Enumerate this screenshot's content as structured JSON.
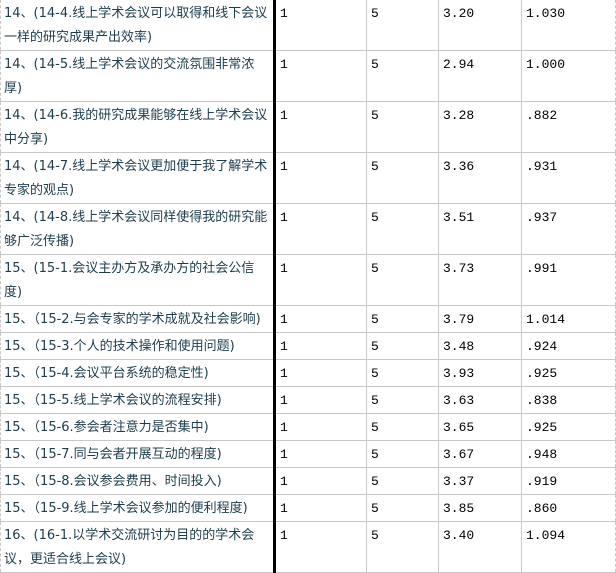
{
  "table": {
    "rows": [
      {
        "label": "14、(14-4.线上学术会议可以取得和线下会议一样的研究成果产出效率)",
        "min": "1",
        "max": "5",
        "mean": "3.20",
        "sd": "1.030",
        "tall": true
      },
      {
        "label": "14、(14-5.线上学术会议的交流氛围非常浓厚)",
        "min": "1",
        "max": "5",
        "mean": "2.94",
        "sd": "1.000",
        "tall": false
      },
      {
        "label": "14、(14-6.我的研究成果能够在线上学术会议中分享)",
        "min": "1",
        "max": "5",
        "mean": "3.28",
        "sd": ".882",
        "tall": true
      },
      {
        "label": "14、(14-7.线上学术会议更加便于我了解学术专家的观点)",
        "min": "1",
        "max": "5",
        "mean": "3.36",
        "sd": ".931",
        "tall": true
      },
      {
        "label": "14、(14-8.线上学术会议同样使得我的研究能够广泛传播)",
        "min": "1",
        "max": "5",
        "mean": "3.51",
        "sd": ".937",
        "tall": true
      },
      {
        "label": "15、(15-1.会议主办方及承办方的社会公信度)",
        "min": "1",
        "max": "5",
        "mean": "3.73",
        "sd": ".991",
        "tall": false
      },
      {
        "label": "15、（15-2.与会专家的学术成就及社会影响)",
        "min": "1",
        "max": "5",
        "mean": "3.79",
        "sd": "1.014",
        "tall": false
      },
      {
        "label": "15、（15-3.个人的技术操作和使用问题)",
        "min": "1",
        "max": "5",
        "mean": "3.48",
        "sd": ".924",
        "tall": false
      },
      {
        "label": "15、（15-4.会议平台系统的稳定性)",
        "min": "1",
        "max": "5",
        "mean": "3.93",
        "sd": ".925",
        "tall": false
      },
      {
        "label": "15、（15-5.线上学术会议的流程安排)",
        "min": "1",
        "max": "5",
        "mean": "3.63",
        "sd": ".838",
        "tall": false
      },
      {
        "label": "15、（15-6.参会者注意力是否集中)",
        "min": "1",
        "max": "5",
        "mean": "3.65",
        "sd": ".925",
        "tall": false
      },
      {
        "label": "15、（15-7.同与会者开展互动的程度)",
        "min": "1",
        "max": "5",
        "mean": "3.67",
        "sd": ".948",
        "tall": false
      },
      {
        "label": "15、（15-8.会议参会费用、时间投入)",
        "min": "1",
        "max": "5",
        "mean": "3.37",
        "sd": ".919",
        "tall": false
      },
      {
        "label": "15、（15-9.线上学术会议参加的便利程度)",
        "min": "1",
        "max": "5",
        "mean": "3.85",
        "sd": ".860",
        "tall": false
      },
      {
        "label": "16、(16-1.以学术交流研讨为目的的学术会议，更适合线上会议)",
        "min": "1",
        "max": "5",
        "mean": "3.40",
        "sd": "1.094",
        "tall": true
      }
    ]
  }
}
